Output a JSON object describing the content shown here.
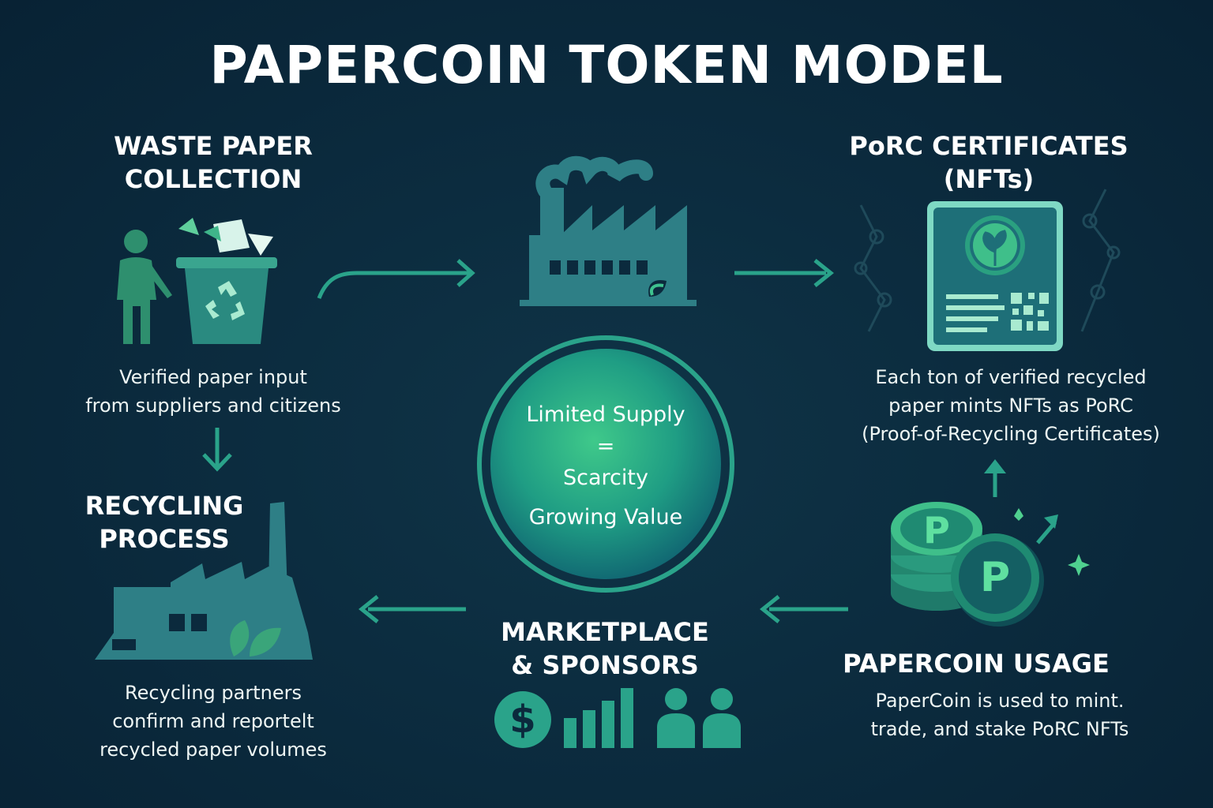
{
  "title": "PAPERCOIN TOKEN MODEL",
  "colors": {
    "background": "#0b2a3d",
    "accent": "#2fa58a",
    "accent_light": "#4fd08f",
    "icon_teal": "#2f8f86",
    "arrow": "#2aa38a"
  },
  "collection": {
    "heading": [
      "WASTE PAPER",
      "COLLECTION"
    ],
    "description": [
      "Verified paper input",
      "from suppliers and citizens"
    ]
  },
  "certificates": {
    "heading": [
      "PoRC CERTIFICATES",
      "(NFTs)"
    ],
    "description": [
      "Each ton of verified recycled",
      "paper mints NFTs as PoRC",
      "(Proof-of-Recycling Certificates)"
    ]
  },
  "recycling": {
    "heading": [
      "RECYCLING",
      "PROCESS"
    ],
    "description": [
      "Recycling partners",
      "confirm and reportelt",
      "recycled paper volumes"
    ]
  },
  "marketplace": {
    "heading": [
      "MARKETPLACE",
      "& SPONSORS"
    ],
    "dollar_symbol": "$"
  },
  "usage": {
    "heading": "PAPERCOIN USAGE",
    "description": [
      "PaperCoin is used to mint.",
      "trade, and stake PoRC NFTs"
    ],
    "coin_symbol": "P"
  },
  "center": {
    "line1": "Limited Supply",
    "line2": "=",
    "line3": "Scarcity",
    "line4": "Growing Value"
  },
  "icons": [
    "person-icon",
    "recycle-bin-icon",
    "factory-icon",
    "certificate-icon",
    "qr-code-icon",
    "leaf-icon",
    "recycling-factory-icon",
    "dollar-icon",
    "bar-chart-icon",
    "people-icon",
    "coin-stack-icon",
    "sparkle-icon"
  ]
}
